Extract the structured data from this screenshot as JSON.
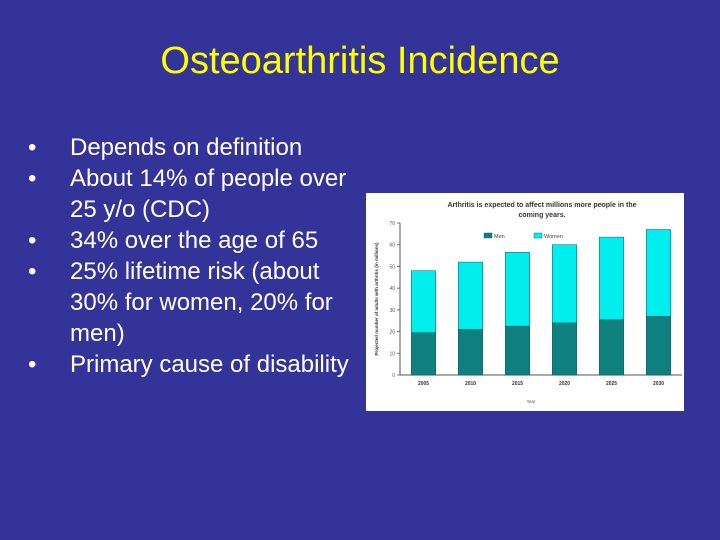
{
  "slide": {
    "title": "Osteoarthritis Incidence",
    "bullets": [
      "Depends on definition",
      "About 14% of people over 25 y/o (CDC)",
      "34% over the age of 65",
      "25% lifetime risk (about 30% for women, 20% for men)",
      "Primary cause of disability"
    ],
    "bullet_glyph": "•"
  },
  "chart_data": {
    "type": "bar",
    "stacked": true,
    "title": "Arthritis is expected to affect millions more people in the coming years.",
    "xlabel": "Year",
    "ylabel": "Projected number of adults with arthritis (in millions)",
    "categories": [
      "2005",
      "2010",
      "2015",
      "2020",
      "2025",
      "2030"
    ],
    "series": [
      {
        "name": "Men",
        "values": [
          19.5,
          21.0,
          22.5,
          24.0,
          25.5,
          27.0
        ],
        "color": "#0e8080"
      },
      {
        "name": "Women",
        "values": [
          28.5,
          31.0,
          34.0,
          36.0,
          38.0,
          40.0
        ],
        "color": "#00eeee"
      }
    ],
    "ylim": [
      0,
      70
    ],
    "yticks": [
      "0",
      "10",
      "20",
      "30",
      "40",
      "50",
      "60",
      "70"
    ],
    "legend_position": "top",
    "grid": false,
    "background": "#ffffff"
  }
}
